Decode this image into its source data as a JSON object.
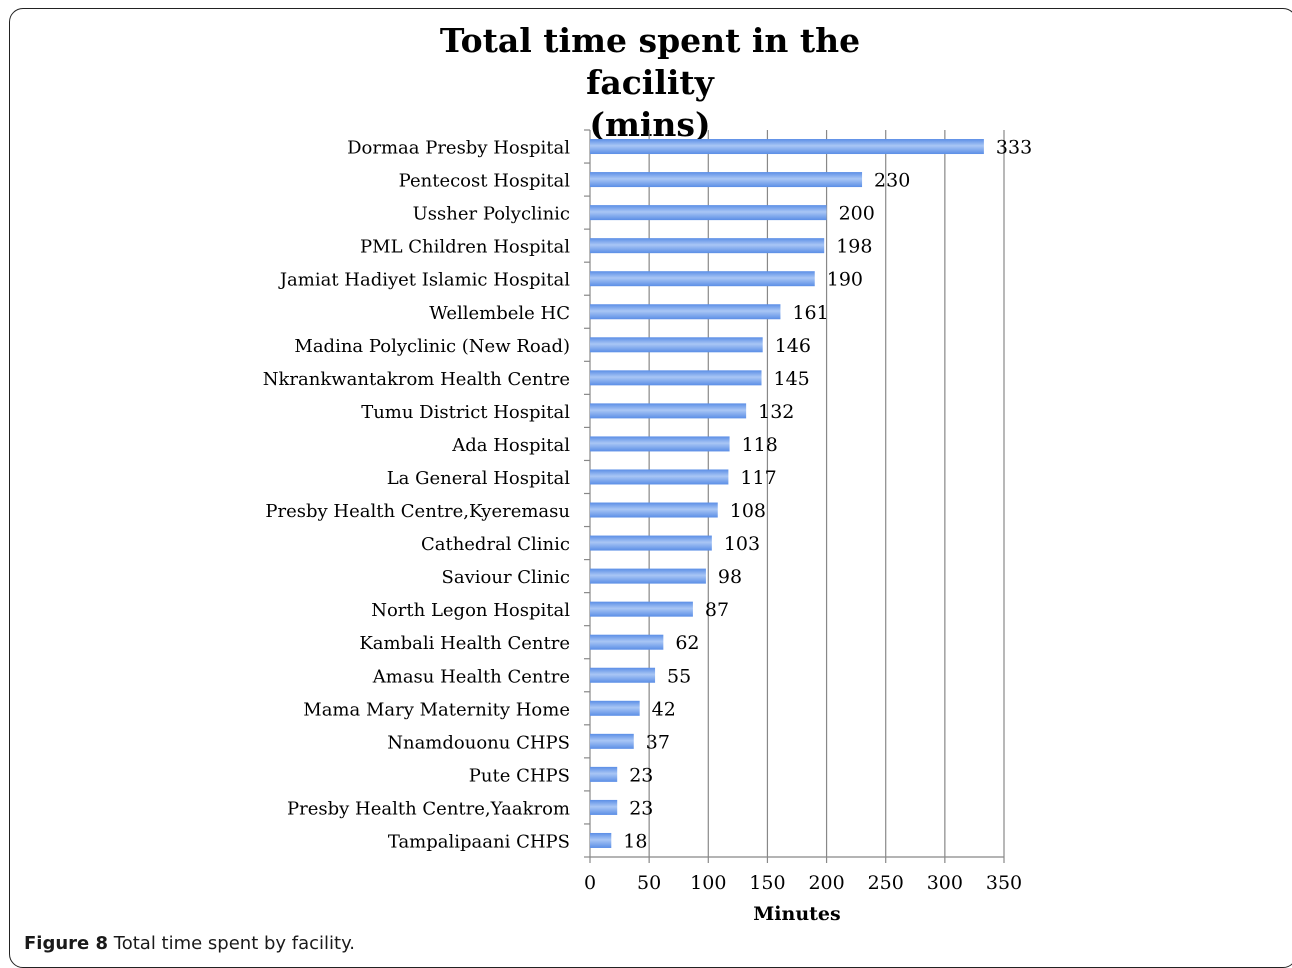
{
  "figure_caption": {
    "label": "Figure 8",
    "text": "Total time spent by facility."
  },
  "colors": {
    "bar": "#5b8ee6",
    "bar_highlight": "#a9c6f5",
    "grid": "#888888",
    "axis": "#888888",
    "text": "#000000"
  },
  "chart_data": {
    "type": "bar",
    "orientation": "horizontal",
    "title_lines": [
      "Total time spent in the facility",
      "(mins)"
    ],
    "xlabel": "Minutes",
    "ylabel": "",
    "xlim": [
      0,
      350
    ],
    "x_ticks": [
      0,
      50,
      100,
      150,
      200,
      250,
      300,
      350
    ],
    "grid": true,
    "legend": "none",
    "categories": [
      "Dormaa Presby Hospital",
      "Pentecost Hospital",
      "Ussher Polyclinic",
      "PML Children Hospital",
      "Jamiat Hadiyet Islamic Hospital",
      "Wellembele HC",
      "Madina Polyclinic (New Road)",
      "Nkrankwantakrom Health Centre",
      "Tumu District Hospital",
      "Ada Hospital",
      "La General Hospital",
      "Presby Health Centre,Kyeremasu",
      "Cathedral Clinic",
      "Saviour Clinic",
      "North Legon Hospital",
      "Kambali Health Centre",
      "Amasu Health Centre",
      "Mama Mary Maternity Home",
      "Nnamdouonu CHPS",
      "Pute CHPS",
      "Presby Health Centre,Yaakrom",
      "Tampalipaani CHPS"
    ],
    "values": [
      333,
      230,
      200,
      198,
      190,
      161,
      146,
      145,
      132,
      118,
      117,
      108,
      103,
      98,
      87,
      62,
      55,
      42,
      37,
      23,
      23,
      18
    ]
  }
}
